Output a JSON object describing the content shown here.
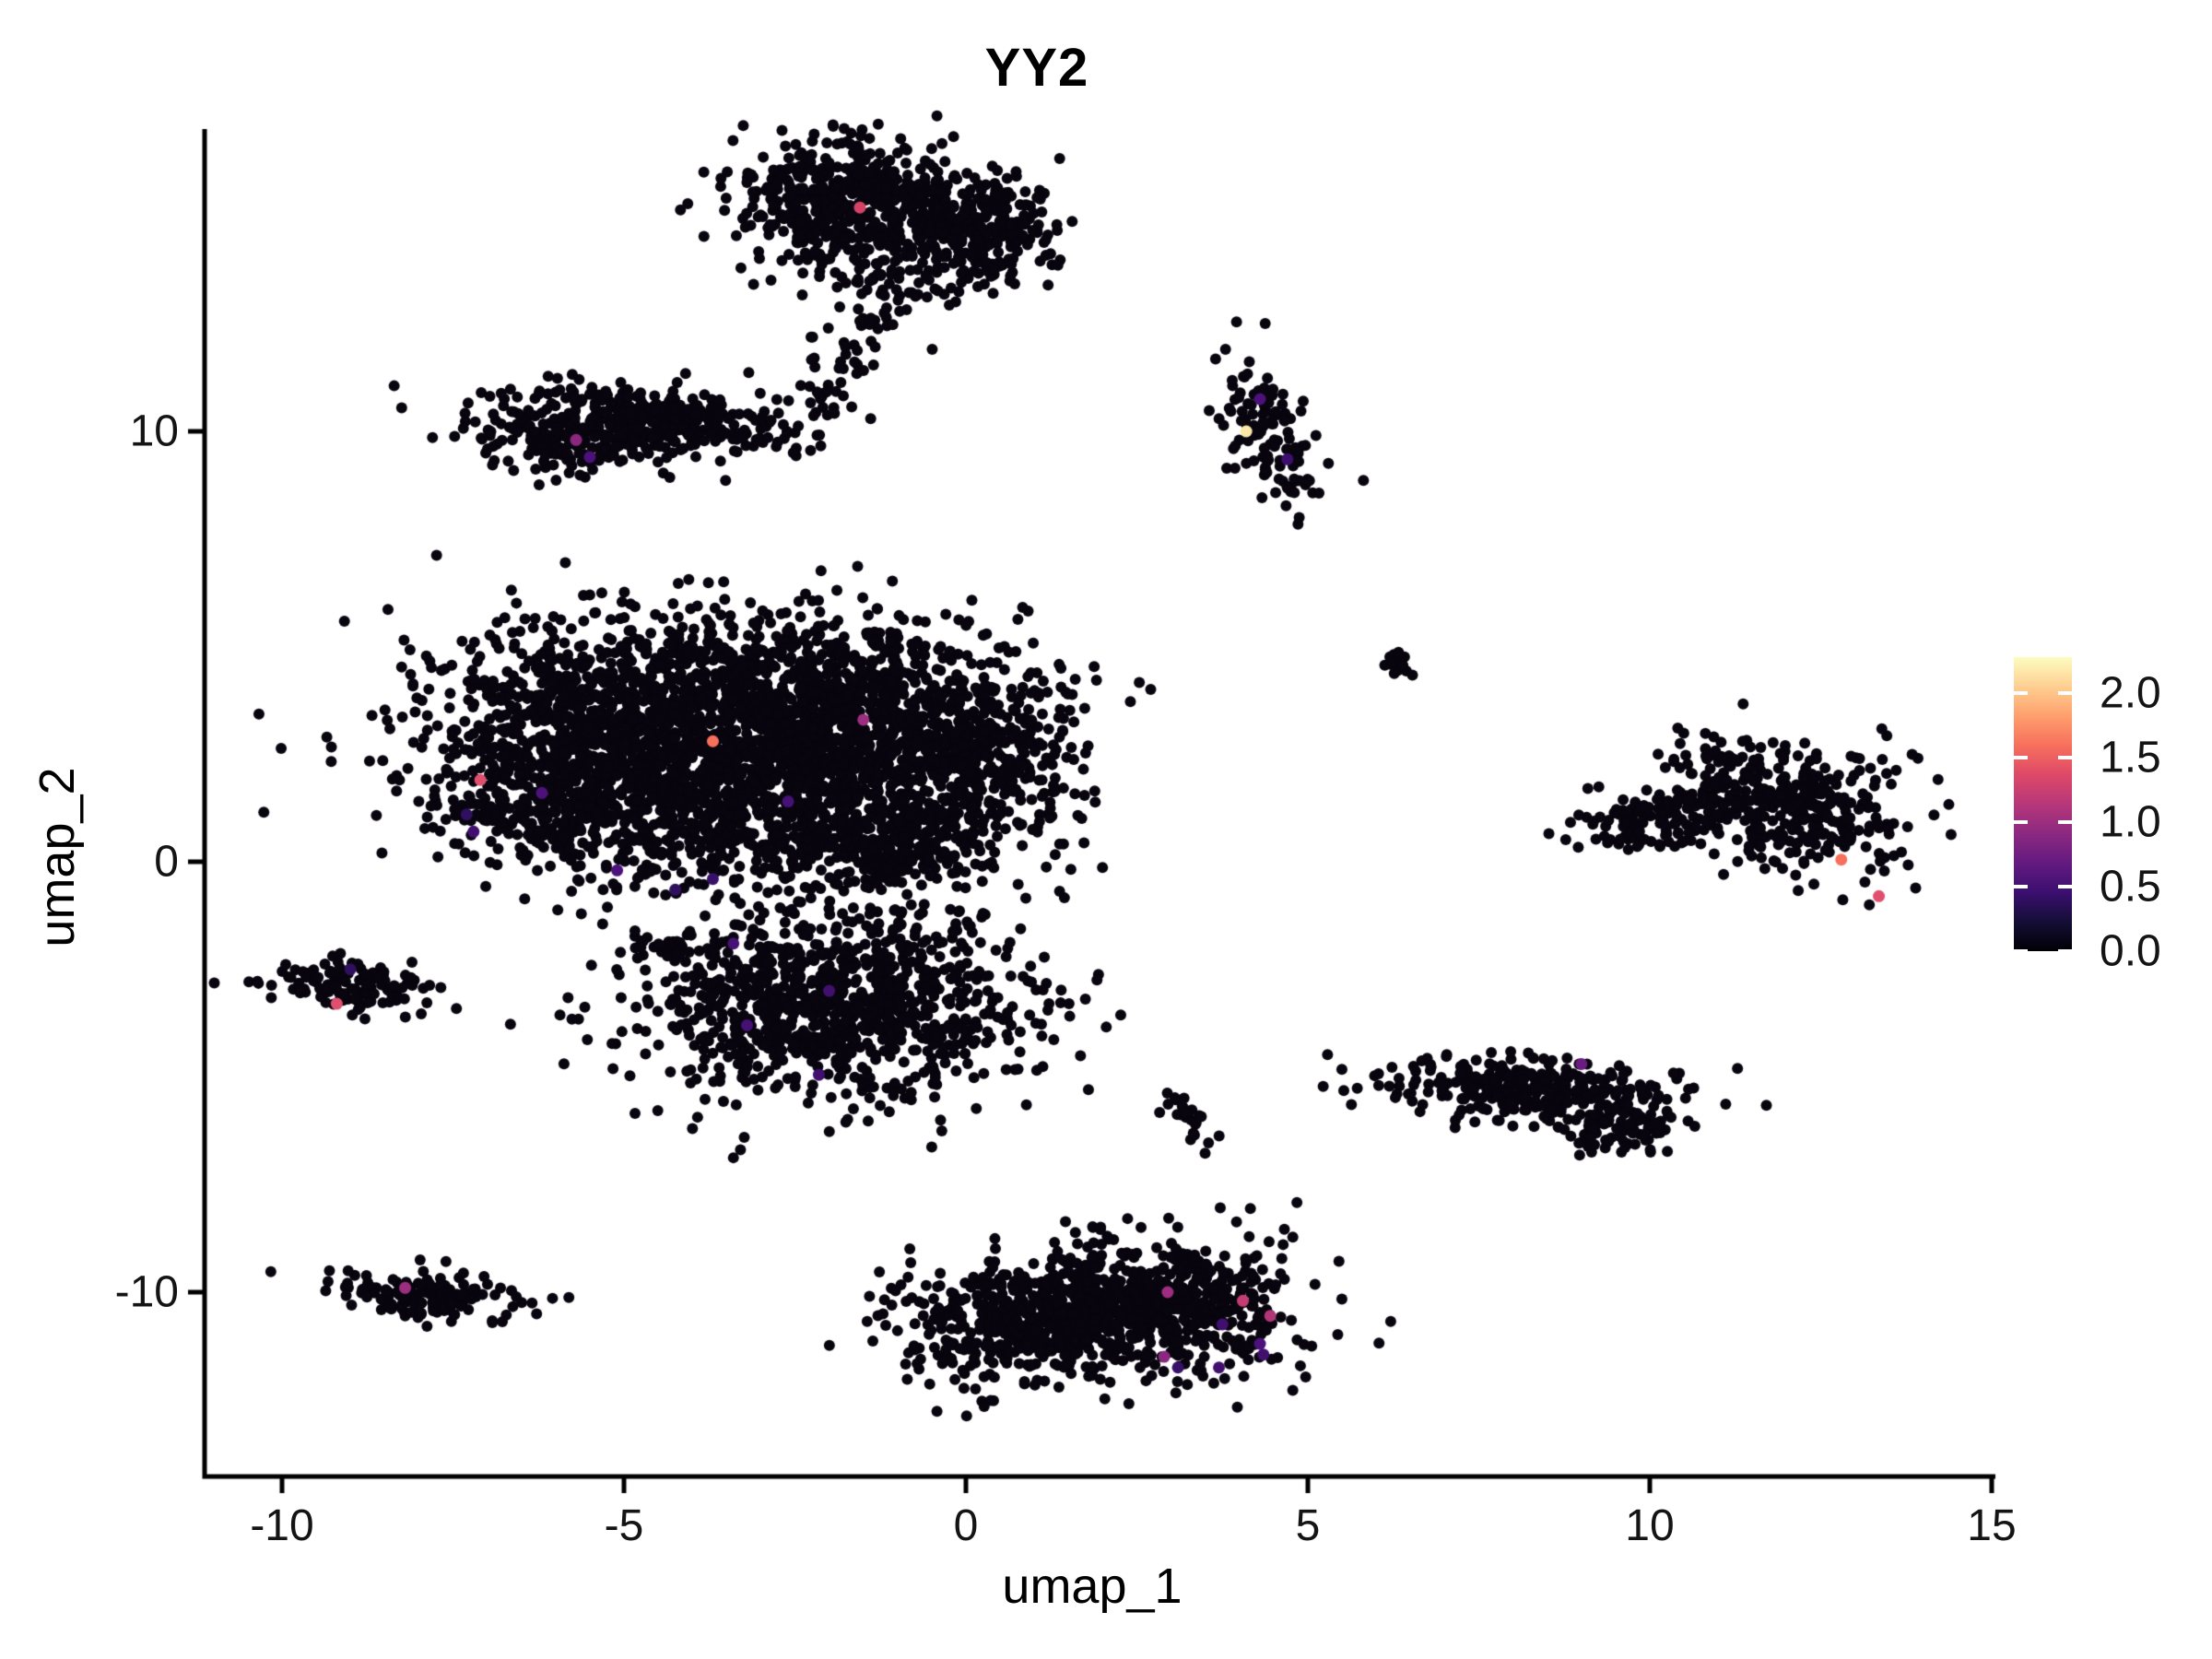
{
  "title": "YY2",
  "axes": {
    "x_label": "umap_1",
    "y_label": "umap_2",
    "x_ticks": [
      -10,
      -5,
      0,
      5,
      10,
      15
    ],
    "y_ticks": [
      10,
      0,
      -10
    ]
  },
  "legend": {
    "tick_labels": [
      "2.0",
      "1.5",
      "1.0",
      "0.5",
      "0.0"
    ],
    "tick_values": [
      2.0,
      1.5,
      1.0,
      0.5,
      0.0
    ],
    "max_value": 2.28,
    "colormap": [
      "#000004",
      "#140e36",
      "#3b0f70",
      "#641a80",
      "#8c2981",
      "#b73779",
      "#de4968",
      "#f7705c",
      "#fe9f6d",
      "#fecf92",
      "#fcfdbf"
    ],
    "point_color": "#08050f"
  },
  "chart_data": {
    "type": "scatter",
    "title": "YY2",
    "xlabel": "umap_1",
    "ylabel": "umap_2",
    "xlim": [
      -11.1,
      15.1
    ],
    "ylim": [
      -14.3,
      17.0
    ],
    "grid": false,
    "legend_position": "right",
    "color_scale": {
      "name": "magma",
      "domain": [
        0,
        2.28
      ],
      "field": "YY2 expression"
    },
    "clusters": [
      {
        "name": "top-main-left",
        "cx": -1.7,
        "cy": 15.3,
        "sx": 0.8,
        "sy": 0.75,
        "angle": -0.1,
        "n": 520
      },
      {
        "name": "top-main-right",
        "cx": 0.1,
        "cy": 14.7,
        "sx": 0.6,
        "sy": 0.65,
        "angle": 0.25,
        "n": 300
      },
      {
        "name": "top-under",
        "cx": -1.1,
        "cy": 13.6,
        "sx": 0.5,
        "sy": 0.5,
        "angle": 0,
        "n": 60
      },
      {
        "name": "top-tail",
        "type": "trail",
        "points": [
          [
            -0.9,
            13.3
          ],
          [
            -1.6,
            12.0
          ],
          [
            -2.1,
            10.8
          ],
          [
            -2.6,
            9.9
          ]
        ],
        "jitter": 0.28,
        "n": 55
      },
      {
        "name": "upper-left-band",
        "cx": -4.8,
        "cy": 10.2,
        "sx": 1.15,
        "sy": 0.42,
        "angle": -0.08,
        "n": 430
      },
      {
        "name": "upper-left-droop",
        "cx": -5.9,
        "cy": 9.7,
        "sx": 0.5,
        "sy": 0.35,
        "angle": 0,
        "n": 90
      },
      {
        "name": "upper-right-small",
        "cx": 4.4,
        "cy": 9.9,
        "sx": 0.34,
        "sy": 0.9,
        "angle": 0.25,
        "n": 120
      },
      {
        "name": "central-1",
        "cx": -4.6,
        "cy": 3.3,
        "sx": 1.6,
        "sy": 1.25,
        "angle": 0,
        "n": 1350
      },
      {
        "name": "central-2",
        "cx": -1.6,
        "cy": 3.1,
        "sx": 1.35,
        "sy": 1.2,
        "angle": 0,
        "n": 1150
      },
      {
        "name": "central-3",
        "cx": -5.9,
        "cy": 1.4,
        "sx": 1.0,
        "sy": 0.85,
        "angle": 0,
        "n": 450
      },
      {
        "name": "central-4",
        "cx": -2.6,
        "cy": 0.9,
        "sx": 1.3,
        "sy": 0.75,
        "angle": 0,
        "n": 550
      },
      {
        "name": "central-right-bump",
        "cx": 0.4,
        "cy": 2.2,
        "sx": 0.65,
        "sy": 1.0,
        "angle": 0,
        "n": 300
      },
      {
        "name": "central-bottom-tail",
        "cx": -0.9,
        "cy": 0.2,
        "sx": 0.5,
        "sy": 0.5,
        "angle": 0,
        "n": 120
      },
      {
        "name": "mini-strip",
        "cx": -4.4,
        "cy": -1.9,
        "sx": 0.3,
        "sy": 0.13,
        "angle": 0,
        "n": 26
      },
      {
        "name": "lower-central",
        "cx": -1.9,
        "cy": -3.3,
        "sx": 1.45,
        "sy": 1.05,
        "angle": 0,
        "n": 1050
      },
      {
        "name": "left-small",
        "cx": -8.9,
        "cy": -2.9,
        "sx": 0.62,
        "sy": 0.3,
        "angle": -0.15,
        "n": 130
      },
      {
        "name": "tiny-compact",
        "cx": 6.3,
        "cy": 4.6,
        "sx": 0.17,
        "sy": 0.15,
        "angle": 0,
        "n": 15
      },
      {
        "name": "right-main",
        "cx": 11.9,
        "cy": 1.3,
        "sx": 1.0,
        "sy": 0.72,
        "angle": -0.3,
        "n": 400
      },
      {
        "name": "right-tail",
        "cx": 10.0,
        "cy": 0.9,
        "sx": 0.5,
        "sy": 0.27,
        "angle": 0.2,
        "n": 85
      },
      {
        "name": "right-bridge",
        "type": "trail",
        "points": [
          [
            10.4,
            1.3
          ],
          [
            10.9,
            1.8
          ],
          [
            11.3,
            2.2
          ]
        ],
        "jitter": 0.15,
        "n": 22
      },
      {
        "name": "right-lower",
        "cx": 8.2,
        "cy": -5.3,
        "sx": 1.15,
        "sy": 0.4,
        "angle": -0.1,
        "n": 310
      },
      {
        "name": "right-lower-bump",
        "cx": 9.6,
        "cy": -6.1,
        "sx": 0.45,
        "sy": 0.38,
        "angle": 0,
        "n": 85
      },
      {
        "name": "mid-diagonal",
        "type": "trail",
        "points": [
          [
            3.0,
            -5.5
          ],
          [
            3.3,
            -6.0
          ],
          [
            3.6,
            -6.6
          ]
        ],
        "jitter": 0.14,
        "n": 24
      },
      {
        "name": "bottom-left",
        "cx": -7.9,
        "cy": -10.1,
        "sx": 0.72,
        "sy": 0.3,
        "angle": -0.15,
        "n": 155
      },
      {
        "name": "bottom-center-left",
        "cx": 0.7,
        "cy": -10.7,
        "sx": 0.85,
        "sy": 0.7,
        "angle": 0,
        "n": 420
      },
      {
        "name": "bottom-center-right",
        "cx": 3.0,
        "cy": -10.3,
        "sx": 0.95,
        "sy": 0.8,
        "angle": 0,
        "n": 520
      },
      {
        "name": "bottom-center-bridge",
        "cx": 1.85,
        "cy": -10.4,
        "sx": 0.55,
        "sy": 0.5,
        "angle": 0,
        "n": 130
      }
    ],
    "highlight_points": [
      {
        "x": 4.1,
        "y": 10.0,
        "value": 2.2,
        "color": "#fbe7a8"
      },
      {
        "x": 4.3,
        "y": 10.75,
        "value": 0.6,
        "color": "#4c117a"
      },
      {
        "x": 4.7,
        "y": 9.35,
        "value": 0.5,
        "color": "#3c0f6e"
      },
      {
        "x": -3.7,
        "y": 2.8,
        "value": 1.6,
        "color": "#f7705c"
      },
      {
        "x": -7.1,
        "y": 1.9,
        "value": 1.3,
        "color": "#e0506e"
      },
      {
        "x": -7.2,
        "y": 0.7,
        "value": 0.5,
        "color": "#41106f"
      },
      {
        "x": -7.3,
        "y": 1.1,
        "value": 0.4,
        "color": "#2f105e"
      },
      {
        "x": -1.5,
        "y": 3.3,
        "value": 1.0,
        "color": "#9c2e80"
      },
      {
        "x": -6.2,
        "y": 1.6,
        "value": 0.6,
        "color": "#4c117a"
      },
      {
        "x": -2.6,
        "y": 1.4,
        "value": 0.55,
        "color": "#451174"
      },
      {
        "x": -5.1,
        "y": -0.2,
        "value": 0.6,
        "color": "#4c117a"
      },
      {
        "x": -1.55,
        "y": 15.2,
        "value": 1.3,
        "color": "#d44365"
      },
      {
        "x": -5.7,
        "y": 9.8,
        "value": 0.9,
        "color": "#8a2880"
      },
      {
        "x": -5.5,
        "y": 9.4,
        "value": 0.6,
        "color": "#4c117a"
      },
      {
        "x": -2.0,
        "y": -3.0,
        "value": 0.5,
        "color": "#41106f"
      },
      {
        "x": -3.2,
        "y": -3.8,
        "value": 0.55,
        "color": "#451174"
      },
      {
        "x": -2.15,
        "y": -4.95,
        "value": 0.5,
        "color": "#41106f"
      },
      {
        "x": -3.4,
        "y": -1.9,
        "value": 0.55,
        "color": "#451174"
      },
      {
        "x": -3.7,
        "y": -0.4,
        "value": 0.45,
        "color": "#38106a"
      },
      {
        "x": -4.25,
        "y": -0.65,
        "value": 0.4,
        "color": "#2f105e"
      },
      {
        "x": -9.2,
        "y": -3.3,
        "value": 1.4,
        "color": "#e0506e"
      },
      {
        "x": -9.0,
        "y": -2.5,
        "value": 0.4,
        "color": "#2f105e"
      },
      {
        "x": 12.8,
        "y": 0.05,
        "value": 1.6,
        "color": "#f7705c"
      },
      {
        "x": 13.35,
        "y": -0.8,
        "value": 1.3,
        "color": "#e0506e"
      },
      {
        "x": 9.0,
        "y": -4.7,
        "value": 0.75,
        "color": "#6a1c81"
      },
      {
        "x": -8.2,
        "y": -9.9,
        "value": 1.0,
        "color": "#9c2e80"
      },
      {
        "x": 4.3,
        "y": -11.2,
        "value": 0.6,
        "color": "#4c117a"
      },
      {
        "x": 4.35,
        "y": -11.45,
        "value": 0.5,
        "color": "#41106f"
      },
      {
        "x": 3.7,
        "y": -11.75,
        "value": 0.5,
        "color": "#41106f"
      },
      {
        "x": 3.1,
        "y": -11.75,
        "value": 0.45,
        "color": "#38106a"
      },
      {
        "x": 2.9,
        "y": -11.5,
        "value": 0.9,
        "color": "#8a2880"
      },
      {
        "x": 2.95,
        "y": -10.0,
        "value": 1.0,
        "color": "#9c2e80"
      },
      {
        "x": 4.05,
        "y": -10.2,
        "value": 1.2,
        "color": "#c43c72"
      },
      {
        "x": 4.45,
        "y": -10.55,
        "value": 1.1,
        "color": "#b03677"
      },
      {
        "x": 3.75,
        "y": -10.75,
        "value": 0.5,
        "color": "#41106f"
      }
    ]
  }
}
